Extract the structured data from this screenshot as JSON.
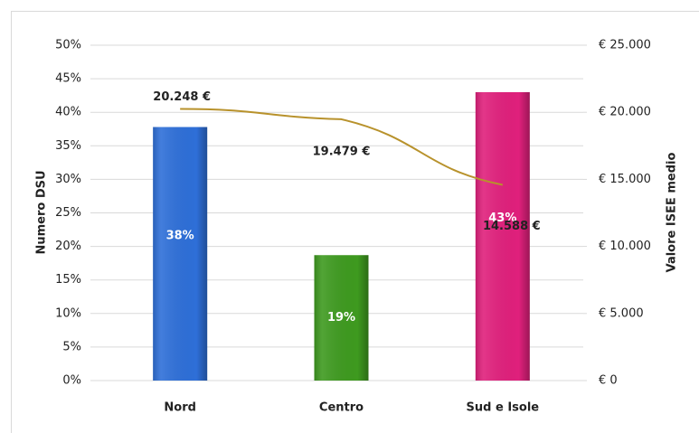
{
  "chart_data": {
    "type": "combo",
    "categories": [
      "Nord",
      "Centro",
      "Sud e Isole"
    ],
    "series": [
      {
        "type": "bar",
        "color": "#2e6fd8",
        "values": [
          37.8,
          18.7,
          43.0
        ],
        "value_labels": [
          "38%",
          "19%",
          "43%"
        ],
        "bar_colors": [
          "#2e6fd8",
          "#3e9a1f",
          "#e0207c"
        ]
      },
      {
        "type": "line",
        "color": "#b8922c",
        "axis": "y2",
        "values": [
          20248,
          19479,
          14588
        ],
        "value_labels": [
          "20.248 €",
          "19.479 €",
          "14.588 €"
        ]
      }
    ],
    "ylabel": "Numero DSU",
    "y2label": "Valore ISEE medio",
    "ylim": [
      0,
      50
    ],
    "yticks": [
      {
        "value": 0,
        "label": "0%"
      },
      {
        "value": 5,
        "label": "5%"
      },
      {
        "value": 10,
        "label": "10%"
      },
      {
        "value": 15,
        "label": "15%"
      },
      {
        "value": 20,
        "label": "20%"
      },
      {
        "value": 25,
        "label": "25%"
      },
      {
        "value": 30,
        "label": "30%"
      },
      {
        "value": 35,
        "label": "35%"
      },
      {
        "value": 40,
        "label": "40%"
      },
      {
        "value": 45,
        "label": "45%"
      },
      {
        "value": 50,
        "label": "50%"
      }
    ],
    "y2lim": [
      0,
      25000
    ],
    "y2ticks": [
      {
        "value": 0,
        "label": "€ 0"
      },
      {
        "value": 5000,
        "label": "€ 5.000"
      },
      {
        "value": 10000,
        "label": "€ 10.000"
      },
      {
        "value": 15000,
        "label": "€ 15.000"
      },
      {
        "value": 20000,
        "label": "€ 20.000"
      },
      {
        "value": 25000,
        "label": "€ 25.000"
      }
    ],
    "grid": true
  }
}
